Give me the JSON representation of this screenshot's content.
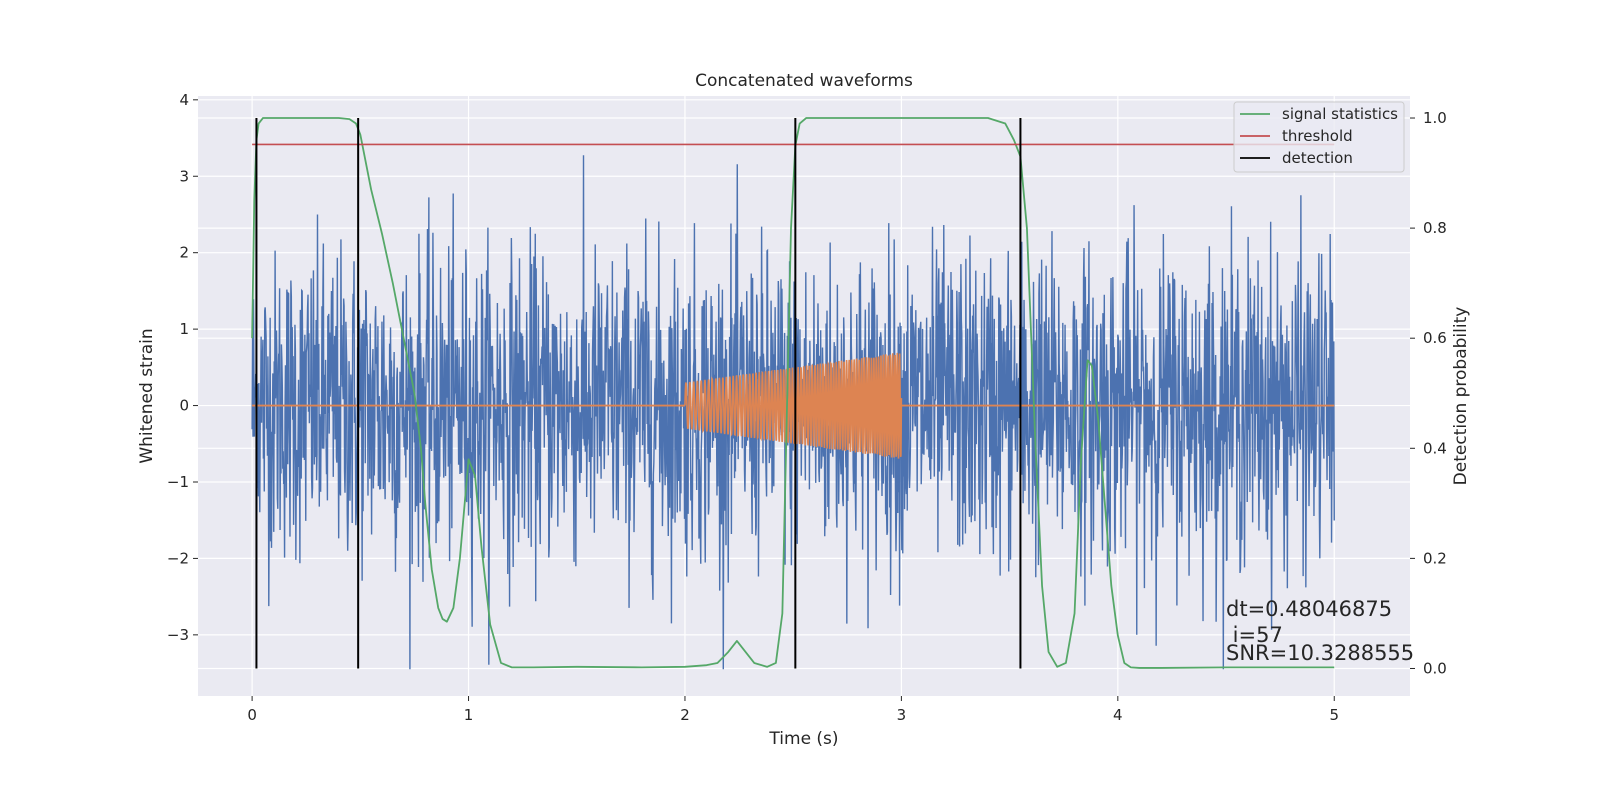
{
  "chart_data": {
    "type": "line",
    "title": "Concatenated waveforms",
    "xlabel": "Time (s)",
    "ylabel_left": "Whitened strain",
    "ylabel_right": "Detection probability",
    "xlim": [
      -0.25,
      5.35
    ],
    "ylim_left": [
      -3.8,
      4.05
    ],
    "ylim_right": [
      -0.05,
      1.04
    ],
    "x_ticks": [
      0,
      1,
      2,
      3,
      4,
      5
    ],
    "x_tick_labels": [
      "0",
      "1",
      "2",
      "3",
      "4",
      "5"
    ],
    "y_left_ticks": [
      -3,
      -2,
      -1,
      0,
      1,
      2,
      3,
      4
    ],
    "y_left_tick_labels": [
      "−3",
      "−2",
      "−1",
      "0",
      "1",
      "2",
      "3",
      "4"
    ],
    "y_right_ticks": [
      0.0,
      0.2,
      0.4,
      0.6,
      0.8,
      1.0
    ],
    "y_right_tick_labels": [
      "0.0",
      "0.2",
      "0.4",
      "0.6",
      "0.8",
      "1.0"
    ],
    "grid": true,
    "legend_position": "top-right",
    "colors": {
      "noise": "#4c72b0",
      "injection": "#dd8452",
      "signal_statistics": "#55a868",
      "threshold": "#c44e52",
      "detection": "#000000",
      "background": "#eaeaf2",
      "grid": "#ffffff"
    },
    "series": [
      {
        "name": "",
        "axis": "left",
        "description_key": "noise",
        "x_range": [
          0,
          5
        ],
        "amplitude_typical": 1.0,
        "amplitude_max": 3.7,
        "amplitude_min": -3.45
      },
      {
        "name": "",
        "axis": "left",
        "description_key": "injection",
        "x_start": 2.0,
        "x_end": 3.0,
        "amplitude_start": 0.3,
        "amplitude_end": 0.7
      },
      {
        "name": "signal statistics",
        "axis": "right",
        "x": [
          0.0,
          0.01,
          0.02,
          0.03,
          0.05,
          0.08,
          0.12,
          0.2,
          0.3,
          0.4,
          0.45,
          0.48,
          0.5,
          0.52,
          0.55,
          0.6,
          0.65,
          0.7,
          0.75,
          0.78,
          0.8,
          0.83,
          0.86,
          0.88,
          0.9,
          0.93,
          0.96,
          1.0,
          1.03,
          1.06,
          1.1,
          1.15,
          1.2,
          1.3,
          1.5,
          1.8,
          2.0,
          2.1,
          2.15,
          2.2,
          2.24,
          2.28,
          2.32,
          2.38,
          2.42,
          2.45,
          2.47,
          2.49,
          2.51,
          2.53,
          2.56,
          2.6,
          2.7,
          3.0,
          3.4,
          3.48,
          3.52,
          3.55,
          3.58,
          3.6,
          3.62,
          3.65,
          3.68,
          3.72,
          3.76,
          3.8,
          3.83,
          3.86,
          3.88,
          3.91,
          3.94,
          3.97,
          4.0,
          4.03,
          4.06,
          4.1,
          4.2,
          4.5,
          5.0
        ],
        "y": [
          0.6,
          0.85,
          0.96,
          0.99,
          1.0,
          1.0,
          1.0,
          1.0,
          1.0,
          1.0,
          0.998,
          0.99,
          0.97,
          0.93,
          0.87,
          0.79,
          0.7,
          0.6,
          0.5,
          0.4,
          0.3,
          0.18,
          0.11,
          0.09,
          0.085,
          0.11,
          0.2,
          0.38,
          0.35,
          0.22,
          0.08,
          0.01,
          0.002,
          0.002,
          0.003,
          0.002,
          0.003,
          0.006,
          0.01,
          0.03,
          0.05,
          0.03,
          0.01,
          0.003,
          0.01,
          0.1,
          0.45,
          0.8,
          0.95,
          0.99,
          1.0,
          1.0,
          1.0,
          1.0,
          1.0,
          0.99,
          0.96,
          0.93,
          0.8,
          0.6,
          0.4,
          0.15,
          0.03,
          0.003,
          0.01,
          0.1,
          0.38,
          0.56,
          0.55,
          0.45,
          0.3,
          0.15,
          0.06,
          0.01,
          0.002,
          0.001,
          0.001,
          0.002,
          0.002
        ]
      },
      {
        "name": "threshold",
        "axis": "right",
        "x": [
          0,
          5
        ],
        "y": [
          0.952,
          0.952
        ]
      },
      {
        "name": "detection",
        "axis": "right",
        "type": "vlines",
        "x": [
          0.02,
          0.49,
          2.51,
          3.55
        ],
        "ymin": 0.0,
        "ymax": 1.0
      }
    ],
    "annotations": {
      "dt": "dt=0.48046875",
      "i": " i=57",
      "snr": "SNR=10.3288555"
    }
  }
}
